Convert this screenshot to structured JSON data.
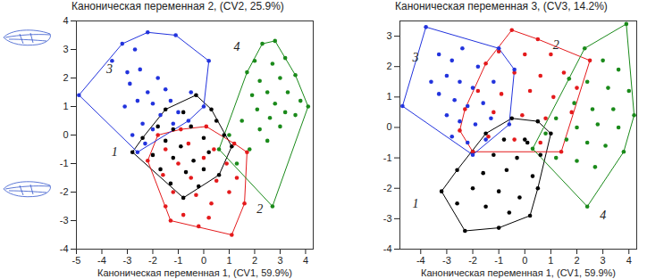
{
  "chart_data": [
    {
      "type": "scatter",
      "ylabel": "Каноническая переменная 2, (CV2, 25.9%)",
      "xlabel": "Каноническая переменная 1, (CV1, 59.9%)",
      "xlim": [
        -5,
        4.3
      ],
      "ylim": [
        -4,
        4
      ],
      "xticks": [
        -5,
        -4,
        -3,
        -2,
        -1,
        0,
        1,
        2,
        3,
        4
      ],
      "yticks": [
        -4,
        -3,
        -2,
        -1,
        0,
        1,
        2,
        3,
        4
      ],
      "grid": false,
      "marker": "circle",
      "series": [
        {
          "name": "1",
          "color": "#000000",
          "label_position": [
            -3.5,
            -0.6
          ],
          "x": [
            -0.3,
            -1.5,
            -0.8,
            0.3,
            -1.8,
            -1.2,
            -0.5,
            0.5,
            -2.4,
            -1.5,
            -0.9,
            0.0,
            0.8,
            -2.8,
            -2.0,
            -1.2,
            -0.4,
            0.2,
            1.1,
            -1.7,
            -0.7,
            0.0,
            -1.3,
            -0.2,
            -0.8,
            0.6
          ],
          "y": [
            1.4,
            0.9,
            0.8,
            0.9,
            0.3,
            0.2,
            0.3,
            0.5,
            -0.1,
            -0.2,
            -0.4,
            -0.1,
            0.0,
            -0.6,
            -0.7,
            -0.8,
            -0.9,
            -0.6,
            -0.4,
            -1.2,
            -1.3,
            -1.2,
            -1.7,
            -1.8,
            -2.2,
            -1.4
          ]
        },
        {
          "name": "2",
          "color": "#e41a1c",
          "label_position": [
            2.2,
            -2.6
          ],
          "x": [
            -1.8,
            -0.9,
            0.1,
            -1.5,
            -0.6,
            0.4,
            1.2,
            -2.2,
            -1.0,
            0.0,
            0.9,
            1.7,
            -1.6,
            -0.5,
            0.5,
            1.3,
            -1.2,
            -0.3,
            0.3,
            1.0,
            -1.5,
            -0.8,
            0.2,
            -1.3,
            1.1,
            -0.2,
            1.6
          ],
          "y": [
            0.0,
            0.2,
            0.3,
            -0.5,
            -0.3,
            -0.5,
            -0.3,
            -0.9,
            -1.0,
            -0.8,
            -1.0,
            -0.6,
            -1.4,
            -1.5,
            -1.6,
            -1.5,
            -2.0,
            -2.1,
            -2.4,
            -2.0,
            -2.5,
            -2.8,
            -2.9,
            -3.0,
            -3.5,
            -3.2,
            -2.4
          ]
        },
        {
          "name": "3",
          "color": "#2233dd",
          "label_position": [
            -3.7,
            2.3
          ],
          "x": [
            -3.2,
            -2.7,
            -2.2,
            -1.1,
            -3.0,
            -2.5,
            -1.8,
            -2.9,
            -2.2,
            -2.6,
            -3.1,
            -2.0,
            -1.5,
            -1.3,
            -1.7,
            -2.4,
            -2.0,
            -2.8,
            -1.2,
            -1.0,
            -0.5,
            0.0,
            -2.3,
            -4.9,
            0.2,
            -3.6,
            -0.6,
            -2.6
          ],
          "y": [
            3.2,
            3.0,
            3.6,
            3.5,
            2.2,
            2.3,
            2.0,
            1.8,
            1.5,
            1.2,
            1.0,
            1.1,
            1.6,
            1.2,
            0.7,
            0.4,
            0.2,
            0.0,
            0.4,
            0.8,
            1.5,
            1.0,
            -0.3,
            1.4,
            2.6,
            2.6,
            0.5,
            -0.6
          ]
        },
        {
          "name": "4",
          "color": "#1a8a1a",
          "label_position": [
            1.3,
            3.1
          ],
          "x": [
            2.3,
            2.8,
            2.0,
            2.7,
            3.2,
            1.7,
            2.2,
            3.0,
            3.6,
            1.9,
            2.5,
            3.3,
            2.8,
            3.8,
            4.1,
            2.1,
            2.6,
            3.2,
            1.5,
            2.2,
            3.0,
            1.0,
            0.6,
            1.8,
            2.5,
            1.3,
            2.7,
            3.6
          ],
          "y": [
            3.2,
            3.3,
            2.6,
            2.5,
            2.7,
            2.2,
            1.9,
            2.0,
            2.1,
            1.4,
            1.5,
            1.5,
            1.1,
            1.2,
            1.0,
            0.9,
            0.6,
            0.8,
            0.5,
            0.2,
            0.3,
            0.0,
            -0.5,
            -0.5,
            -0.2,
            -1.0,
            -2.5,
            0.7
          ]
        }
      ]
    },
    {
      "type": "scatter",
      "ylabel": "Каноническая переменная 3, (CV3, 14.2%)",
      "xlabel": "Каноническая переменная 1, (CV1, 59.9%)",
      "xlim": [
        -4.8,
        4.3
      ],
      "ylim": [
        -4,
        3.5
      ],
      "xticks": [
        -4,
        -3,
        -2,
        -1,
        0,
        1,
        2,
        3,
        4
      ],
      "yticks": [
        -4,
        -3,
        -2,
        -1,
        0,
        1,
        2,
        3
      ],
      "grid": false,
      "marker": "circle",
      "series": [
        {
          "name": "1",
          "color": "#000000",
          "label_position": [
            -4.2,
            -2.5
          ],
          "x": [
            -0.5,
            0.5,
            1.0,
            -1.5,
            -0.8,
            0.1,
            -2.0,
            -1.2,
            -0.3,
            0.6,
            -2.6,
            -1.6,
            -0.7,
            0.3,
            -3.2,
            -2.0,
            -1.0,
            -0.2,
            0.5,
            -1.5,
            -0.6,
            0.2,
            -2.3,
            -1.0,
            -2.6,
            0.0
          ],
          "y": [
            0.3,
            0.2,
            -0.2,
            -0.2,
            -0.4,
            -0.5,
            -0.8,
            -0.9,
            -1.0,
            -0.9,
            -1.4,
            -1.5,
            -1.4,
            -1.6,
            -2.1,
            -2.0,
            -2.1,
            -2.3,
            -2.0,
            -2.6,
            -2.8,
            -2.9,
            -3.4,
            -3.3,
            -2.5,
            -0.4
          ]
        },
        {
          "name": "2",
          "color": "#e41a1c",
          "label_position": [
            1.2,
            2.7
          ],
          "x": [
            -0.5,
            0.5,
            -1.0,
            0.0,
            1.0,
            -1.5,
            -0.4,
            0.6,
            1.5,
            -1.8,
            -0.9,
            0.2,
            1.1,
            2.0,
            -2.3,
            -1.2,
            -0.1,
            0.8,
            1.8,
            2.5,
            -2.5,
            -1.4,
            -0.4,
            0.6,
            1.4,
            -2.0
          ],
          "y": [
            3.2,
            2.9,
            2.5,
            2.4,
            2.4,
            2.1,
            1.8,
            1.7,
            1.8,
            1.2,
            1.1,
            1.2,
            1.0,
            1.3,
            0.6,
            0.5,
            0.4,
            0.3,
            0.5,
            2.2,
            -0.1,
            -0.3,
            -0.4,
            -0.5,
            -0.8,
            -0.8
          ]
        },
        {
          "name": "3",
          "color": "#2233dd",
          "label_position": [
            -4.2,
            2.3
          ],
          "x": [
            -4.7,
            -3.8,
            -3.3,
            -2.8,
            -2.4,
            -1.8,
            -3.0,
            -2.5,
            -2.0,
            -3.3,
            -2.7,
            -2.2,
            -1.6,
            -1.2,
            -3.0,
            -2.5,
            -1.9,
            -1.3,
            -2.8,
            -2.2,
            -1.5,
            -0.6,
            -0.4,
            -1.0,
            -2.0,
            -3.6
          ],
          "y": [
            0.7,
            3.3,
            2.4,
            2.2,
            2.6,
            2.0,
            1.7,
            1.5,
            1.3,
            1.1,
            0.9,
            0.7,
            0.8,
            1.5,
            0.4,
            0.2,
            0.1,
            0.3,
            -0.3,
            -0.5,
            -0.4,
            0.1,
            1.9,
            2.6,
            -0.9,
            1.5
          ]
        },
        {
          "name": "4",
          "color": "#1a8a1a",
          "label_position": [
            3.0,
            -2.9
          ],
          "x": [
            3.9,
            2.3,
            3.0,
            3.6,
            1.7,
            2.4,
            3.2,
            4.0,
            1.9,
            2.6,
            3.4,
            1.2,
            2.0,
            2.8,
            3.6,
            4.2,
            0.8,
            1.6,
            2.4,
            3.1,
            0.3,
            1.2,
            2.0,
            2.7,
            2.4,
            3.8
          ],
          "y": [
            3.4,
            2.6,
            2.2,
            1.9,
            1.6,
            1.5,
            1.3,
            1.2,
            0.8,
            0.6,
            0.6,
            0.3,
            0.0,
            0.1,
            0.0,
            0.4,
            -0.2,
            -0.4,
            -0.5,
            -0.6,
            -0.7,
            -1.0,
            -1.1,
            -1.3,
            -2.6,
            -0.8
          ]
        }
      ]
    }
  ]
}
